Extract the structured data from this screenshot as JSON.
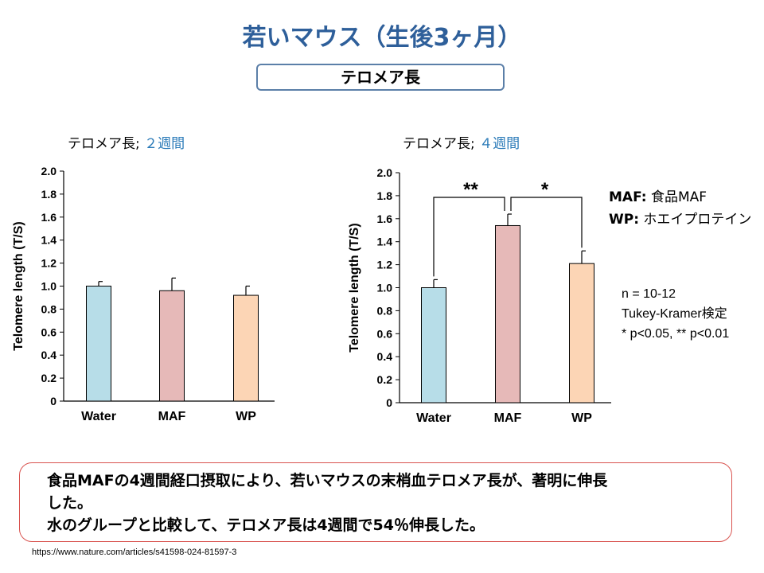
{
  "title": "若いマウス（生後3ヶ月）",
  "subtitle": "テロメア長",
  "legend": {
    "maf_key": "MAF:",
    "maf_value": " 食品MAF",
    "wp_key": "WP:",
    "wp_value": " ホエイプロテイン"
  },
  "stats": {
    "n": "n = 10-12",
    "test": "Tukey-Kramer検定",
    "p": "* p<0.05, ** p<0.01"
  },
  "summary": {
    "line1": "食品MAFの4週間経口摂取により、若いマウスの末梢血テロメア長が、著明に伸長",
    "line2": "した。",
    "line3": "水のグループと比較して、テロメア長は4週間で54％伸長した。"
  },
  "source": "https://www.nature.com/articles/s41598-024-81597-3",
  "colors": {
    "title": "#2e5f9a",
    "water": "#b7dde8",
    "maf": "#e6b9b8",
    "wp": "#fcd5b5"
  },
  "chart_data": [
    {
      "type": "bar",
      "title_prefix": "テロメア長; ",
      "title_suffix": "２週間",
      "ylabel": "Telomere length (T/S)",
      "ylim": [
        0,
        2.0
      ],
      "yticks": [
        "0",
        "0.2",
        "0.4",
        "0.6",
        "0.8",
        "1.0",
        "1.2",
        "1.4",
        "1.6",
        "1.8",
        "2.0"
      ],
      "categories": [
        "Water",
        "MAF",
        "WP"
      ],
      "values": [
        1.0,
        0.96,
        0.92
      ],
      "errors": [
        0.04,
        0.11,
        0.08
      ],
      "significance": []
    },
    {
      "type": "bar",
      "title_prefix": "テロメア長; ",
      "title_suffix": "４週間",
      "ylabel": "Telomere length (T/S)",
      "ylim": [
        0,
        2.0
      ],
      "yticks": [
        "0",
        "0.2",
        "0.4",
        "0.6",
        "0.8",
        "1.0",
        "1.2",
        "1.4",
        "1.6",
        "1.8",
        "2.0"
      ],
      "categories": [
        "Water",
        "MAF",
        "WP"
      ],
      "values": [
        1.0,
        1.54,
        1.21
      ],
      "errors": [
        0.07,
        0.1,
        0.11
      ],
      "significance": [
        {
          "from": 0,
          "to": 1,
          "label": "**"
        },
        {
          "from": 1,
          "to": 2,
          "label": "*"
        }
      ]
    }
  ]
}
